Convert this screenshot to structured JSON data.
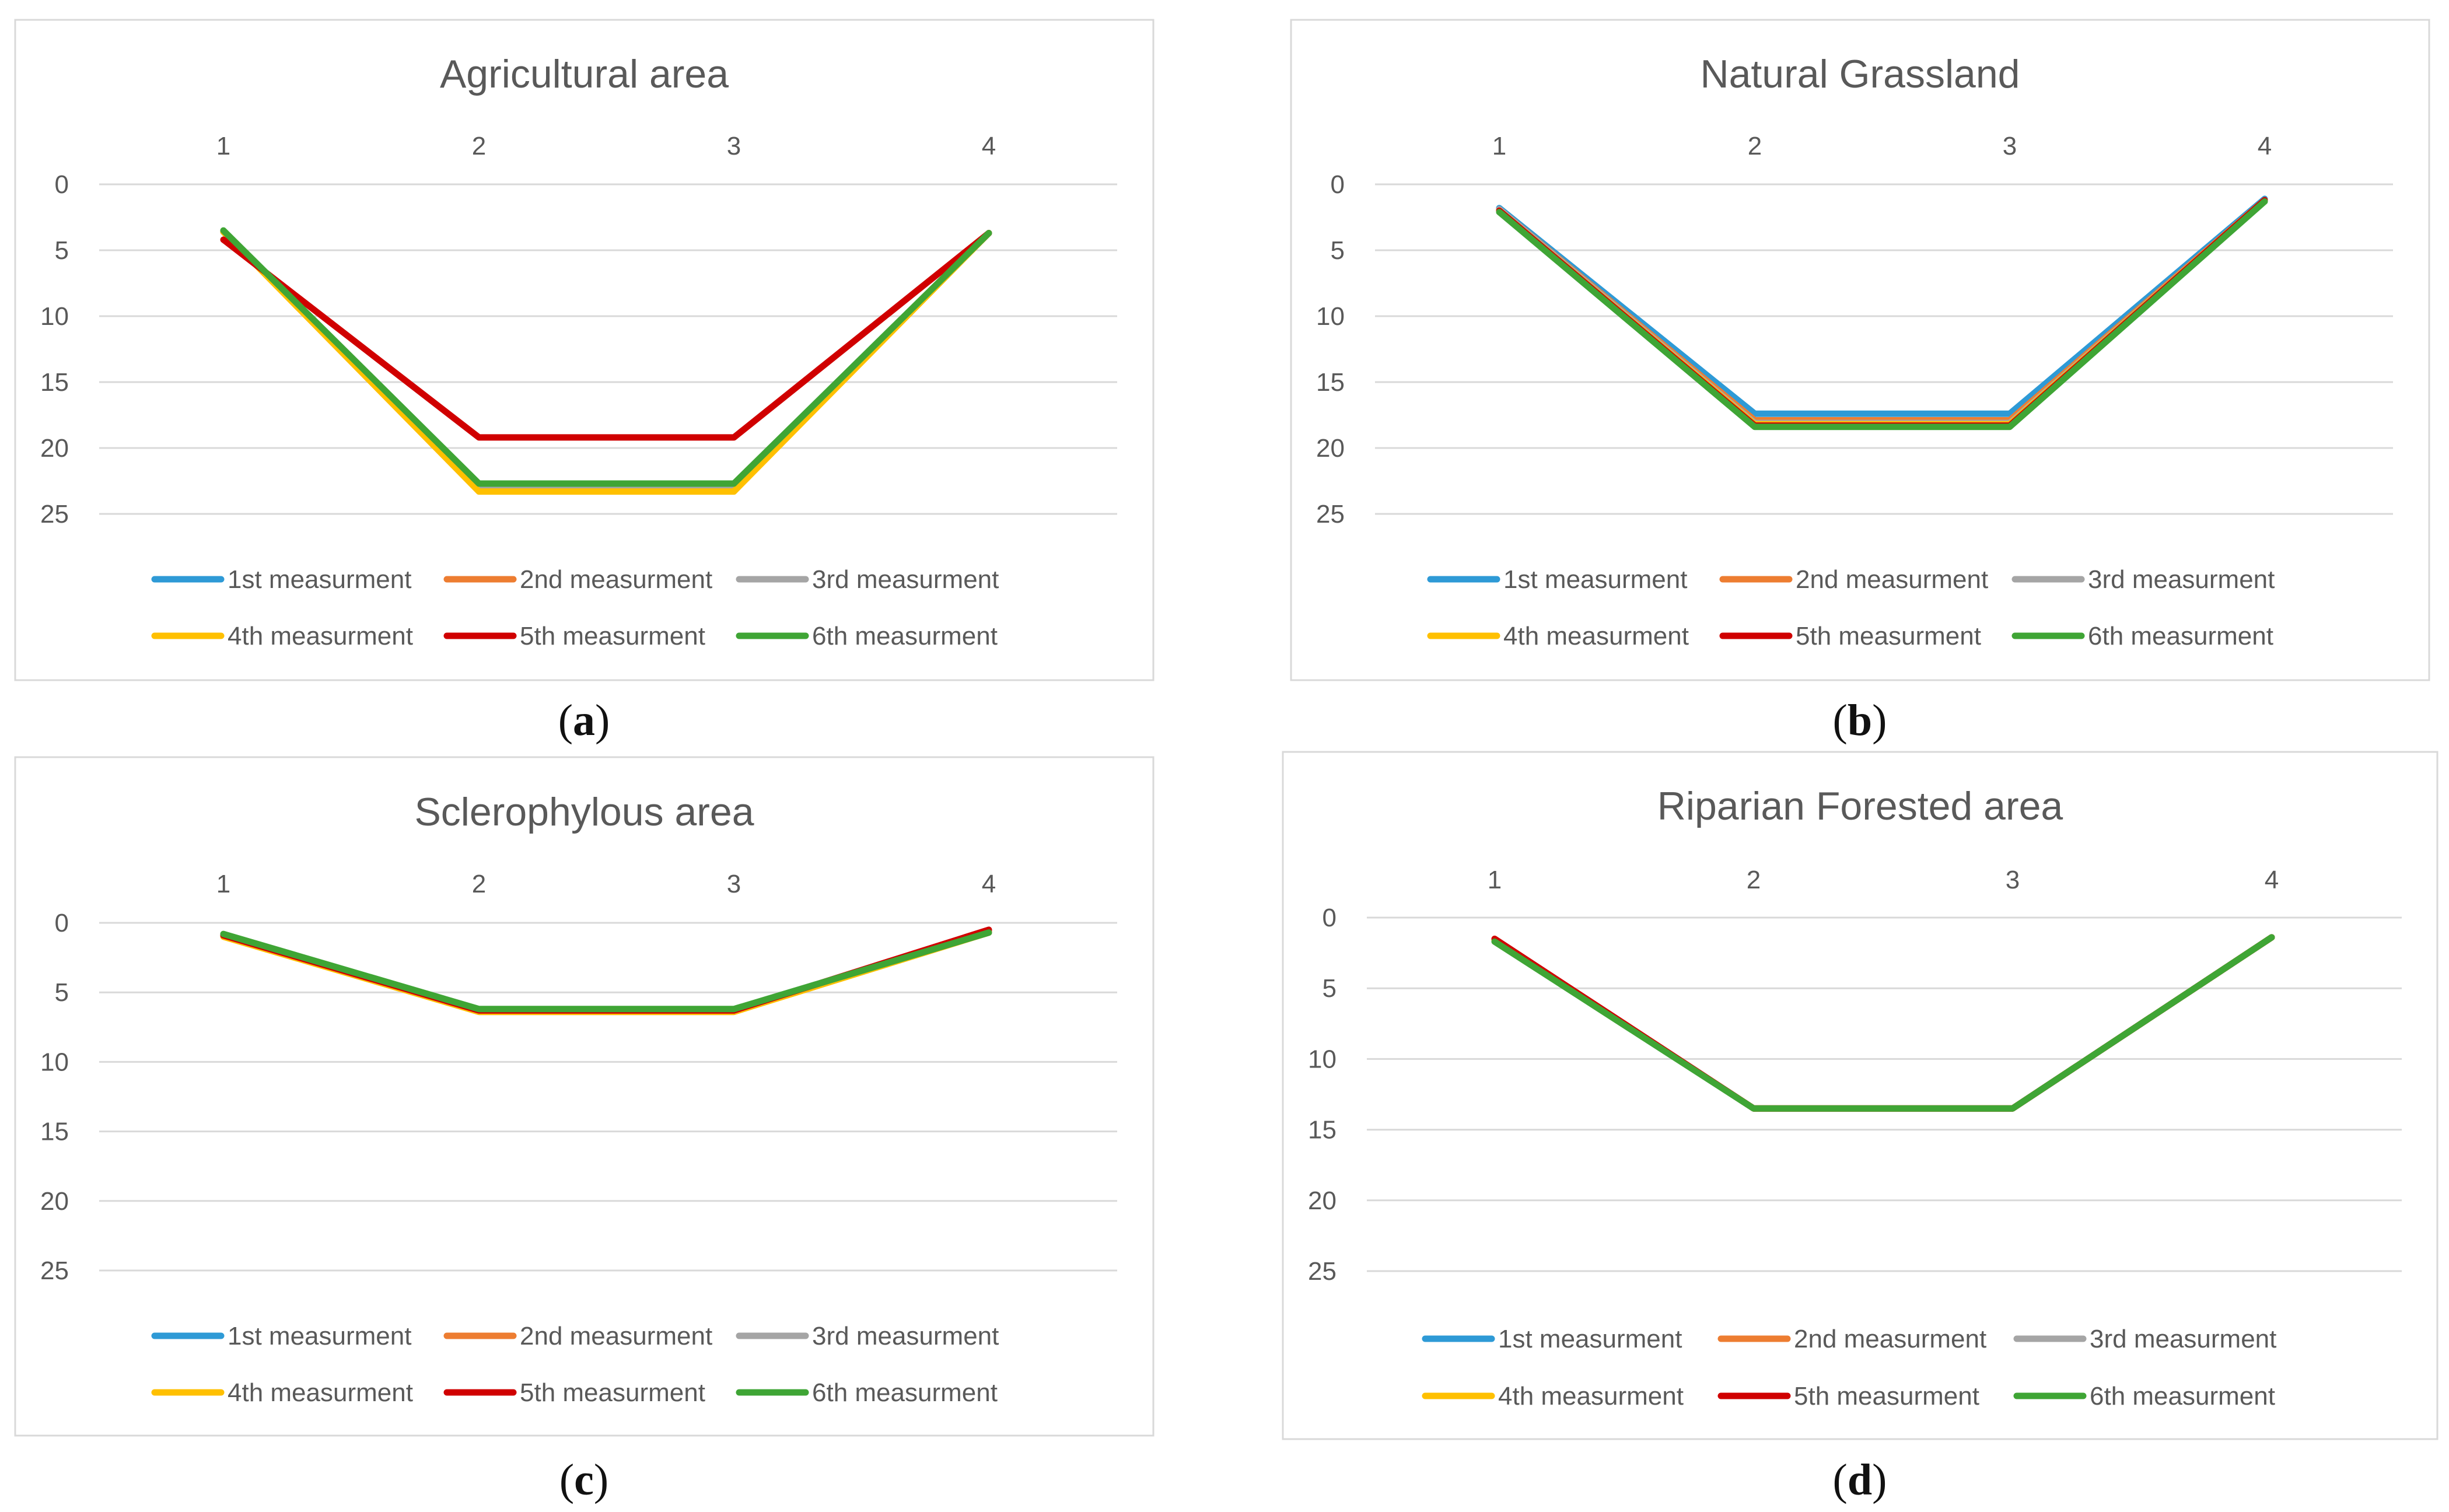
{
  "chart_data": [
    {
      "type": "line",
      "panel": "a",
      "title": "Agricultural area",
      "categories": [
        "1",
        "2",
        "3",
        "4"
      ],
      "y_ticks": [
        "0",
        "5",
        "10",
        "15",
        "20",
        "25"
      ],
      "ylim": [
        0,
        25
      ],
      "y_inverted": true,
      "x_axis_position": "top",
      "legend_position": "bottom",
      "series": [
        {
          "name": "1st measurment",
          "color": "#2e9ad6",
          "values": [
            3.6,
            23.0,
            23.0,
            3.7
          ]
        },
        {
          "name": "2nd measurment",
          "color": "#ed7d31",
          "values": [
            3.6,
            23.1,
            23.1,
            3.7
          ]
        },
        {
          "name": "3rd measurment",
          "color": "#a5a5a5",
          "values": [
            3.6,
            23.0,
            23.0,
            3.7
          ]
        },
        {
          "name": "4th measurment",
          "color": "#ffc000",
          "values": [
            3.6,
            23.3,
            23.3,
            3.7
          ]
        },
        {
          "name": "5th measurment",
          "color": "#d00000",
          "values": [
            4.2,
            19.2,
            19.2,
            3.7
          ]
        },
        {
          "name": "6th measurment",
          "color": "#3fa535",
          "values": [
            3.5,
            22.7,
            22.7,
            3.7
          ]
        }
      ]
    },
    {
      "type": "line",
      "panel": "b",
      "title": "Natural Grassland",
      "categories": [
        "1",
        "2",
        "3",
        "4"
      ],
      "y_ticks": [
        "0",
        "5",
        "10",
        "15",
        "20",
        "25"
      ],
      "ylim": [
        0,
        25
      ],
      "y_inverted": true,
      "x_axis_position": "top",
      "legend_position": "bottom",
      "series": [
        {
          "name": "1st measurment",
          "color": "#2e9ad6",
          "values": [
            1.8,
            17.4,
            17.4,
            1.1
          ]
        },
        {
          "name": "2nd measurment",
          "color": "#ed7d31",
          "values": [
            1.9,
            17.9,
            17.9,
            1.2
          ]
        },
        {
          "name": "3rd measurment",
          "color": "#a5a5a5",
          "values": [
            1.9,
            18.1,
            18.1,
            1.2
          ]
        },
        {
          "name": "4th measurment",
          "color": "#ffc000",
          "values": [
            2.0,
            18.2,
            18.2,
            1.2
          ]
        },
        {
          "name": "5th measurment",
          "color": "#d00000",
          "values": [
            2.0,
            18.3,
            18.3,
            1.2
          ]
        },
        {
          "name": "6th measurment",
          "color": "#3fa535",
          "values": [
            2.1,
            18.4,
            18.4,
            1.3
          ]
        }
      ]
    },
    {
      "type": "line",
      "panel": "c",
      "title": "Sclerophylous area",
      "categories": [
        "1",
        "2",
        "3",
        "4"
      ],
      "y_ticks": [
        "0",
        "5",
        "10",
        "15",
        "20",
        "25"
      ],
      "ylim": [
        0,
        25
      ],
      "y_inverted": true,
      "x_axis_position": "top",
      "legend_position": "bottom",
      "series": [
        {
          "name": "1st measurment",
          "color": "#2e9ad6",
          "values": [
            0.9,
            6.3,
            6.3,
            0.7
          ]
        },
        {
          "name": "2nd measurment",
          "color": "#ed7d31",
          "values": [
            0.9,
            6.4,
            6.4,
            0.6
          ]
        },
        {
          "name": "3rd measurment",
          "color": "#a5a5a5",
          "values": [
            0.9,
            6.3,
            6.3,
            0.7
          ]
        },
        {
          "name": "4th measurment",
          "color": "#ffc000",
          "values": [
            1.0,
            6.4,
            6.4,
            0.7
          ]
        },
        {
          "name": "5th measurment",
          "color": "#d00000",
          "values": [
            0.9,
            6.3,
            6.3,
            0.5
          ]
        },
        {
          "name": "6th measurment",
          "color": "#3fa535",
          "values": [
            0.8,
            6.2,
            6.2,
            0.7
          ]
        }
      ]
    },
    {
      "type": "line",
      "panel": "d",
      "title": "Riparian Forested area",
      "categories": [
        "1",
        "2",
        "3",
        "4"
      ],
      "y_ticks": [
        "0",
        "5",
        "10",
        "15",
        "20",
        "25"
      ],
      "ylim": [
        0,
        25
      ],
      "y_inverted": true,
      "x_axis_position": "top",
      "legend_position": "bottom",
      "series": [
        {
          "name": "1st measurment",
          "color": "#2e9ad6",
          "values": [
            1.6,
            13.5,
            13.5,
            1.4
          ]
        },
        {
          "name": "2nd measurment",
          "color": "#ed7d31",
          "values": [
            1.6,
            13.5,
            13.5,
            1.4
          ]
        },
        {
          "name": "3rd measurment",
          "color": "#a5a5a5",
          "values": [
            1.6,
            13.5,
            13.5,
            1.4
          ]
        },
        {
          "name": "4th measurment",
          "color": "#ffc000",
          "values": [
            1.6,
            13.5,
            13.5,
            1.4
          ]
        },
        {
          "name": "5th measurment",
          "color": "#d00000",
          "values": [
            1.5,
            13.5,
            13.5,
            1.4
          ]
        },
        {
          "name": "6th measurment",
          "color": "#3fa535",
          "values": [
            1.7,
            13.5,
            13.5,
            1.4
          ]
        }
      ]
    }
  ],
  "captions": [
    {
      "open": "(",
      "letter": "a",
      "close": ")"
    },
    {
      "open": "(",
      "letter": "b",
      "close": ")"
    },
    {
      "open": "(",
      "letter": "c",
      "close": ")"
    },
    {
      "open": "(",
      "letter": "d",
      "close": ")"
    }
  ]
}
